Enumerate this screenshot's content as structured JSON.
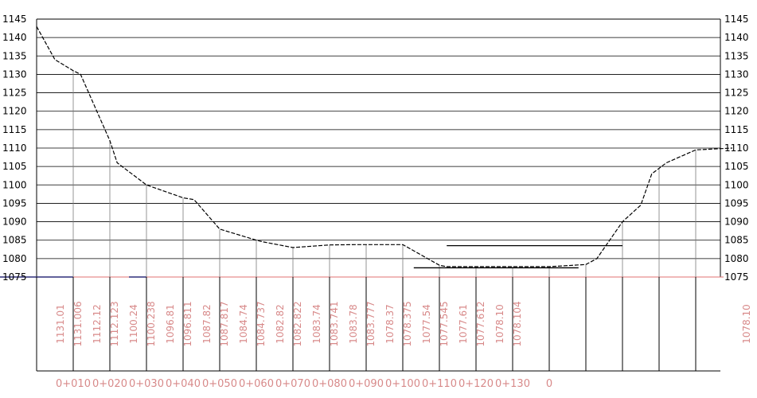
{
  "chart_data": {
    "type": "line",
    "title": "",
    "xlabel": "",
    "ylabel": "",
    "ylim": [
      1075,
      1145
    ],
    "grid": true,
    "colors": {
      "profile": "#000000",
      "grid": "#000000",
      "datum": "#e07070",
      "labels": "#d88a8a",
      "box": "#2f2f7a"
    },
    "y_ticks": [
      "1075",
      "1080",
      "1085",
      "1090",
      "1095",
      "1100",
      "1105",
      "1110",
      "1115",
      "1120",
      "1125",
      "1130",
      "1135",
      "1140",
      "1145"
    ],
    "chainage_labels": [
      "0+010",
      "0+020",
      "0+030",
      "0+040",
      "0+050",
      "0+060",
      "0+070",
      "0+080",
      "0+090",
      "0+100",
      "0+110",
      "0+120",
      "0+130",
      "0"
    ],
    "chainage_values": [
      10,
      20,
      30,
      40,
      50,
      60,
      70,
      80,
      90,
      100,
      110,
      120,
      130,
      140
    ],
    "profile": {
      "x": [
        0,
        5,
        10,
        12,
        20,
        22,
        30,
        40,
        43,
        50,
        60,
        62,
        70,
        80,
        87,
        100,
        110,
        112,
        120,
        140,
        150,
        153,
        160,
        165,
        168,
        172,
        180,
        190
      ],
      "y": [
        1143,
        1134,
        1131,
        1130,
        1112,
        1106,
        1100,
        1096.5,
        1096,
        1088,
        1085,
        1084.5,
        1083,
        1083.7,
        1083.8,
        1083.8,
        1078.2,
        1077.8,
        1077.8,
        1077.8,
        1078.4,
        1080,
        1090,
        1094.5,
        1103,
        1106,
        1109.5,
        1110
      ]
    },
    "water_lines": [
      {
        "x": [
          103,
          148
        ],
        "y": [
          1077.5,
          1077.5
        ]
      },
      {
        "x": [
          112,
          160
        ],
        "y": [
          1083.5,
          1083.5
        ]
      }
    ],
    "elevation_labels": [
      {
        "x": 10.5,
        "text": "1131.01"
      },
      {
        "x": 13.5,
        "text": "1131.006"
      },
      {
        "x": 20.5,
        "text": "1112.12"
      },
      {
        "x": 23.5,
        "text": "1112.123"
      },
      {
        "x": 30.5,
        "text": "1100.24"
      },
      {
        "x": 33.5,
        "text": "1100.238"
      },
      {
        "x": 40.5,
        "text": "1096.81"
      },
      {
        "x": 43.5,
        "text": "1096.811"
      },
      {
        "x": 50.5,
        "text": "1087.82"
      },
      {
        "x": 53.5,
        "text": "1087.817"
      },
      {
        "x": 60.5,
        "text": "1084.74"
      },
      {
        "x": 63.5,
        "text": "1084.737"
      },
      {
        "x": 70.5,
        "text": "1082.82"
      },
      {
        "x": 73.5,
        "text": "1082.822"
      },
      {
        "x": 80.5,
        "text": "1083.74"
      },
      {
        "x": 83.5,
        "text": "1083.741"
      },
      {
        "x": 90.5,
        "text": "1083.78"
      },
      {
        "x": 93.5,
        "text": "1083.777"
      },
      {
        "x": 100.5,
        "text": "1078.37"
      },
      {
        "x": 103.5,
        "text": "1078.375"
      },
      {
        "x": 110.5,
        "text": "1077.54"
      },
      {
        "x": 113.5,
        "text": "1077.545"
      },
      {
        "x": 120.5,
        "text": "1077.61"
      },
      {
        "x": 123.5,
        "text": "1077.612"
      },
      {
        "x": 130.5,
        "text": "1078.10"
      },
      {
        "x": 133.5,
        "text": "1078.104"
      },
      {
        "x": 141,
        "text": "1078.10"
      }
    ]
  }
}
